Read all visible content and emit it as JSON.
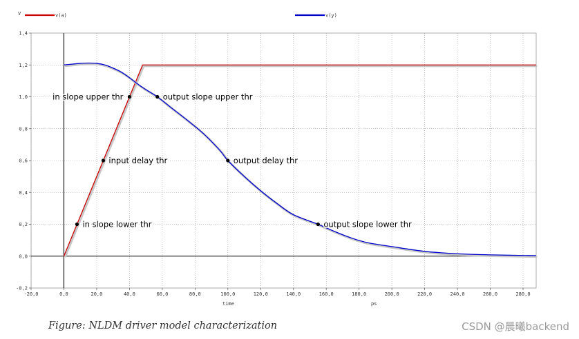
{
  "chart_data": {
    "type": "line",
    "ylabel": "V",
    "xlabel": "time",
    "xunit": "ps",
    "xlim": [
      -20,
      288
    ],
    "ylim": [
      -0.2,
      1.4
    ],
    "xticks": [
      -20,
      0,
      20,
      40,
      60,
      80,
      100,
      120,
      140,
      160,
      180,
      200,
      220,
      240,
      260,
      280
    ],
    "yticks": [
      -0.2,
      0.0,
      0.2,
      0.4,
      0.6,
      0.8,
      1.0,
      1.2,
      1.4
    ],
    "xtick_labels": [
      "-20,0",
      "0,0",
      "20,0",
      "40,0",
      "60,0",
      "80,0",
      "100,0",
      "120,0",
      "140,0",
      "160,0",
      "180,0",
      "200,0",
      "220,0",
      "240,0",
      "260,0",
      "280,0"
    ],
    "ytick_labels": [
      "-0,2",
      "0,0",
      "0,2",
      "0,4",
      "0,6",
      "0,8",
      "1,0",
      "1,2",
      "1,4"
    ],
    "grid": true,
    "series": [
      {
        "name": "v(a)",
        "color": "#cc0000",
        "x": [
          0,
          48,
          288
        ],
        "y": [
          0.0,
          1.2,
          1.2
        ]
      },
      {
        "name": "v(y)",
        "color": "#0000cc",
        "x": [
          0,
          5,
          10,
          15,
          20,
          25,
          30,
          35,
          40,
          45,
          50,
          57,
          65,
          75,
          85,
          95,
          100,
          110,
          120,
          130,
          140,
          155,
          165,
          175,
          185,
          200,
          220,
          240,
          260,
          288
        ],
        "y": [
          1.2,
          1.205,
          1.21,
          1.212,
          1.21,
          1.2,
          1.18,
          1.155,
          1.12,
          1.08,
          1.045,
          1.0,
          0.935,
          0.855,
          0.77,
          0.665,
          0.6,
          0.5,
          0.41,
          0.33,
          0.26,
          0.2,
          0.155,
          0.115,
          0.085,
          0.06,
          0.03,
          0.015,
          0.008,
          0.003
        ]
      }
    ],
    "annotations": [
      {
        "text": "in slope upper thr",
        "x": 40,
        "y": 1.0,
        "side": "left"
      },
      {
        "text": "output slope upper thr",
        "x": 57,
        "y": 1.0,
        "side": "right"
      },
      {
        "text": "input delay thr",
        "x": 24,
        "y": 0.6,
        "side": "right"
      },
      {
        "text": "output delay thr",
        "x": 100,
        "y": 0.6,
        "side": "right"
      },
      {
        "text": "in slope lower thr",
        "x": 8,
        "y": 0.2,
        "side": "right"
      },
      {
        "text": "output slope lower thr",
        "x": 155,
        "y": 0.2,
        "side": "right"
      }
    ]
  },
  "caption": "Figure: NLDM driver model characterization",
  "watermark": "CSDN @晨曦backend"
}
